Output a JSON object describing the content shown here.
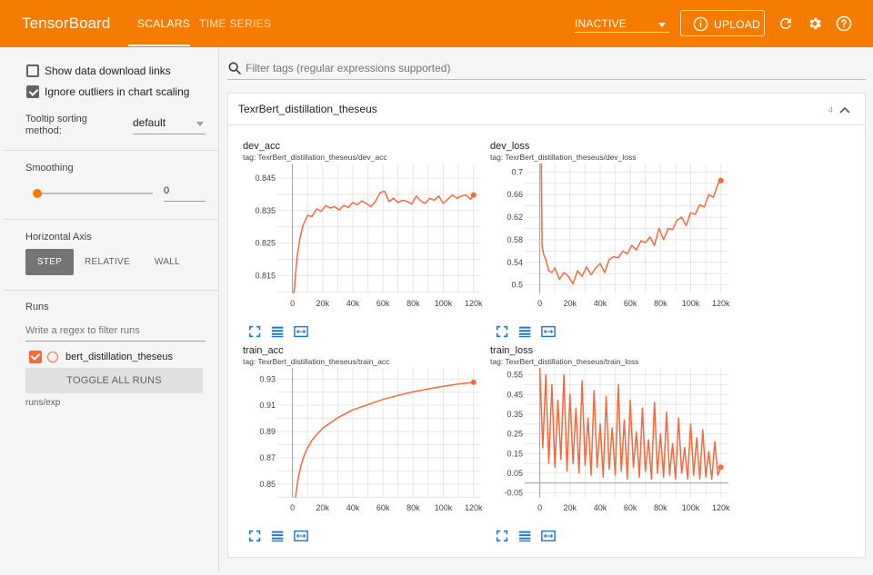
{
  "header": {
    "brand": "TensorBoard",
    "tabs": [
      {
        "label": "SCALARS",
        "active": true
      },
      {
        "label": "TIME SERIES",
        "active": false
      }
    ],
    "status": "INACTIVE",
    "upload_label": "UPLOAD",
    "icons": [
      "info-icon",
      "refresh-icon",
      "settings-icon",
      "help-icon"
    ]
  },
  "sidebar": {
    "show_download_links": {
      "label": "Show data download links",
      "checked": false
    },
    "ignore_outliers": {
      "label": "Ignore outliers in chart scaling",
      "checked": true
    },
    "tooltip_sorting": {
      "label": "Tooltip sorting method:",
      "value": "default"
    },
    "smoothing": {
      "label": "Smoothing",
      "value": "0",
      "level": 0
    },
    "horizontal_axis": {
      "label": "Horizontal Axis",
      "options": [
        "STEP",
        "RELATIVE",
        "WALL"
      ],
      "selected": "STEP"
    },
    "runs": {
      "label": "Runs",
      "filter_placeholder": "Write a regex to filter runs",
      "items": [
        {
          "name": "bert_distillation_theseus",
          "checked": true,
          "color": "#f4693b"
        }
      ],
      "toggle_label": "TOGGLE ALL RUNS",
      "path": "runs/exp"
    }
  },
  "main": {
    "filter_placeholder": "Filter tags (regular expressions supported)",
    "group": {
      "title": "TexrBert_distillation_theseus",
      "count": "4"
    }
  },
  "colors": {
    "accent": "#f57c00",
    "series": "#f4693b"
  },
  "chart_data": [
    {
      "type": "line",
      "title": "dev_acc",
      "tag": "tag: TexrBert_distillation_theseus/dev_acc",
      "xlabel": "",
      "ylabel": "",
      "xlim": [
        -10000,
        125000
      ],
      "ylim": [
        0.8095,
        0.8495
      ],
      "xticks": [
        0,
        20000,
        40000,
        60000,
        80000,
        100000,
        120000
      ],
      "xtick_labels": [
        "0",
        "20k",
        "40k",
        "60k",
        "80k",
        "100k",
        "120k"
      ],
      "yticks": [
        0.815,
        0.825,
        0.835,
        0.845
      ],
      "ytick_labels": [
        "0.815",
        "0.825",
        "0.835",
        "0.845"
      ],
      "grid": true,
      "series": [
        {
          "color": "#f4693b",
          "x": [
            1000,
            3000,
            5000,
            7000,
            10000,
            13000,
            16000,
            19000,
            22000,
            25000,
            28000,
            31000,
            34000,
            37000,
            40000,
            43000,
            46000,
            49000,
            52000,
            55000,
            58000,
            61000,
            64000,
            67000,
            70000,
            73000,
            76000,
            79000,
            82000,
            85000,
            88000,
            91000,
            94000,
            97000,
            100000,
            103000,
            106000,
            109000,
            112000,
            115000,
            118000,
            120000
          ],
          "y": [
            0.8095,
            0.8205,
            0.8265,
            0.8305,
            0.8335,
            0.8332,
            0.8355,
            0.8348,
            0.8365,
            0.8358,
            0.8362,
            0.8352,
            0.8366,
            0.836,
            0.8375,
            0.8368,
            0.838,
            0.8372,
            0.8362,
            0.8378,
            0.8405,
            0.841,
            0.8378,
            0.8388,
            0.8375,
            0.8382,
            0.8378,
            0.837,
            0.8395,
            0.838,
            0.8372,
            0.8388,
            0.8382,
            0.8395,
            0.8372,
            0.8385,
            0.8398,
            0.8388,
            0.8395,
            0.8398,
            0.8385,
            0.8398
          ]
        }
      ]
    },
    {
      "type": "line",
      "title": "dev_loss",
      "tag": "tag: TexrBert_distillation_theseus/dev_loss",
      "xlabel": "",
      "ylabel": "",
      "xlim": [
        -10000,
        125000
      ],
      "ylim": [
        0.485,
        0.715
      ],
      "xticks": [
        0,
        20000,
        40000,
        60000,
        80000,
        100000,
        120000
      ],
      "xtick_labels": [
        "0",
        "20k",
        "40k",
        "60k",
        "80k",
        "100k",
        "120k"
      ],
      "yticks": [
        0.5,
        0.54,
        0.58,
        0.62,
        0.66,
        0.7
      ],
      "ytick_labels": [
        "0.5",
        "0.54",
        "0.58",
        "0.62",
        "0.66",
        "0.7"
      ],
      "grid": true,
      "series": [
        {
          "color": "#f4693b",
          "x": [
            1000,
            1500,
            2500,
            4000,
            6000,
            8000,
            10000,
            13000,
            16000,
            19000,
            22000,
            25000,
            28000,
            31000,
            34000,
            37000,
            40000,
            43000,
            46000,
            49000,
            52000,
            55000,
            58000,
            61000,
            64000,
            67000,
            70000,
            73000,
            76000,
            79000,
            82000,
            85000,
            88000,
            91000,
            94000,
            97000,
            100000,
            103000,
            106000,
            109000,
            112000,
            115000,
            118000,
            120000
          ],
          "y": [
            0.715,
            0.57,
            0.555,
            0.545,
            0.525,
            0.522,
            0.53,
            0.51,
            0.522,
            0.515,
            0.502,
            0.525,
            0.515,
            0.532,
            0.518,
            0.53,
            0.538,
            0.522,
            0.545,
            0.55,
            0.548,
            0.56,
            0.555,
            0.57,
            0.562,
            0.578,
            0.575,
            0.585,
            0.57,
            0.6,
            0.58,
            0.6,
            0.598,
            0.615,
            0.62,
            0.605,
            0.628,
            0.625,
            0.642,
            0.638,
            0.66,
            0.655,
            0.678,
            0.685
          ]
        }
      ]
    },
    {
      "type": "line",
      "title": "train_acc",
      "tag": "tag: TexrBert_distillation_theseus/train_acc",
      "xlabel": "",
      "ylabel": "",
      "xlim": [
        -10000,
        125000
      ],
      "ylim": [
        0.8395,
        0.9385
      ],
      "xticks": [
        0,
        20000,
        40000,
        60000,
        80000,
        100000,
        120000
      ],
      "xtick_labels": [
        "0",
        "20k",
        "40k",
        "60k",
        "80k",
        "100k",
        "120k"
      ],
      "yticks": [
        0.85,
        0.87,
        0.89,
        0.91,
        0.93
      ],
      "ytick_labels": [
        "0.85",
        "0.87",
        "0.89",
        "0.91",
        "0.93"
      ],
      "grid": true,
      "series": [
        {
          "color": "#f4693b",
          "x": [
            2000,
            3000,
            4000,
            6000,
            8000,
            10000,
            13000,
            16000,
            20000,
            25000,
            30000,
            35000,
            40000,
            50000,
            60000,
            70000,
            80000,
            90000,
            100000,
            110000,
            120000
          ],
          "y": [
            0.8395,
            0.8485,
            0.8555,
            0.8655,
            0.8725,
            0.8775,
            0.8835,
            0.8875,
            0.8925,
            0.8965,
            0.9005,
            0.9035,
            0.9065,
            0.9105,
            0.9145,
            0.9175,
            0.9202,
            0.9225,
            0.9245,
            0.9262,
            0.9275
          ]
        }
      ]
    },
    {
      "type": "line",
      "title": "train_loss",
      "tag": "tag: TexrBert_distillation_theseus/train_loss",
      "xlabel": "",
      "ylabel": "",
      "xlim": [
        -10000,
        125000
      ],
      "ylim": [
        -0.075,
        0.585
      ],
      "xticks": [
        0,
        20000,
        40000,
        60000,
        80000,
        100000,
        120000
      ],
      "xtick_labels": [
        "0",
        "20k",
        "40k",
        "60k",
        "80k",
        "100k",
        "120k"
      ],
      "yticks": [
        -0.05,
        0.05,
        0.15,
        0.25,
        0.35,
        0.45,
        0.55
      ],
      "ytick_labels": [
        "-0.05",
        "0.05",
        "0.15",
        "0.25",
        "0.35",
        "0.45",
        "0.55"
      ],
      "grid": true,
      "series": [
        {
          "color": "#f4693b",
          "x": [
            0,
            2000,
            4000,
            6000,
            8000,
            10000,
            12000,
            14000,
            16000,
            18000,
            20000,
            22000,
            24000,
            26000,
            28000,
            30000,
            32000,
            34000,
            36000,
            38000,
            40000,
            42000,
            44000,
            46000,
            48000,
            50000,
            52000,
            54000,
            56000,
            58000,
            60000,
            62000,
            64000,
            66000,
            68000,
            70000,
            72000,
            74000,
            76000,
            78000,
            80000,
            82000,
            84000,
            86000,
            88000,
            90000,
            92000,
            94000,
            96000,
            98000,
            100000,
            102000,
            104000,
            106000,
            108000,
            110000,
            112000,
            114000,
            116000,
            118000,
            120000
          ],
          "y": [
            0.585,
            0.18,
            0.55,
            0.1,
            0.5,
            0.08,
            0.42,
            0.12,
            0.55,
            0.06,
            0.45,
            0.1,
            0.38,
            0.05,
            0.52,
            0.09,
            0.33,
            0.04,
            0.47,
            0.08,
            0.3,
            0.03,
            0.44,
            0.07,
            0.28,
            0.04,
            0.5,
            0.06,
            0.32,
            0.02,
            0.42,
            0.08,
            0.26,
            0.03,
            0.38,
            0.06,
            0.22,
            0.02,
            0.41,
            0.05,
            0.25,
            0.03,
            0.36,
            0.04,
            0.2,
            0.02,
            0.33,
            0.05,
            0.18,
            0.02,
            0.3,
            0.04,
            0.23,
            0.02,
            0.27,
            0.03,
            0.16,
            0.02,
            0.21,
            0.04,
            0.08
          ]
        }
      ]
    }
  ]
}
